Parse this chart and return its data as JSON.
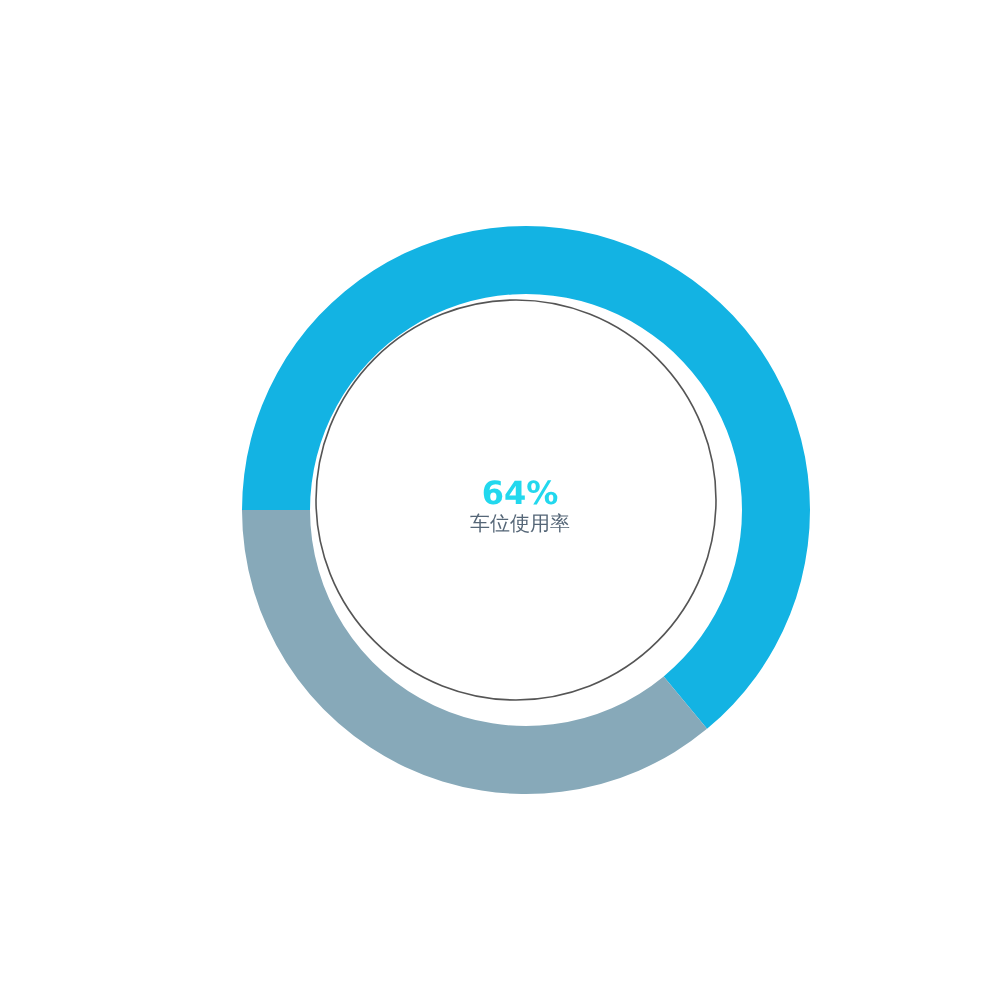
{
  "chart_data": {
    "type": "donut",
    "categories": [
      "车位使用率",
      null
    ],
    "values": [
      64,
      36
    ],
    "value_labels": [
      "64%",
      null
    ],
    "colors": [
      "#13b3e3",
      "#87a9b9"
    ]
  }
}
